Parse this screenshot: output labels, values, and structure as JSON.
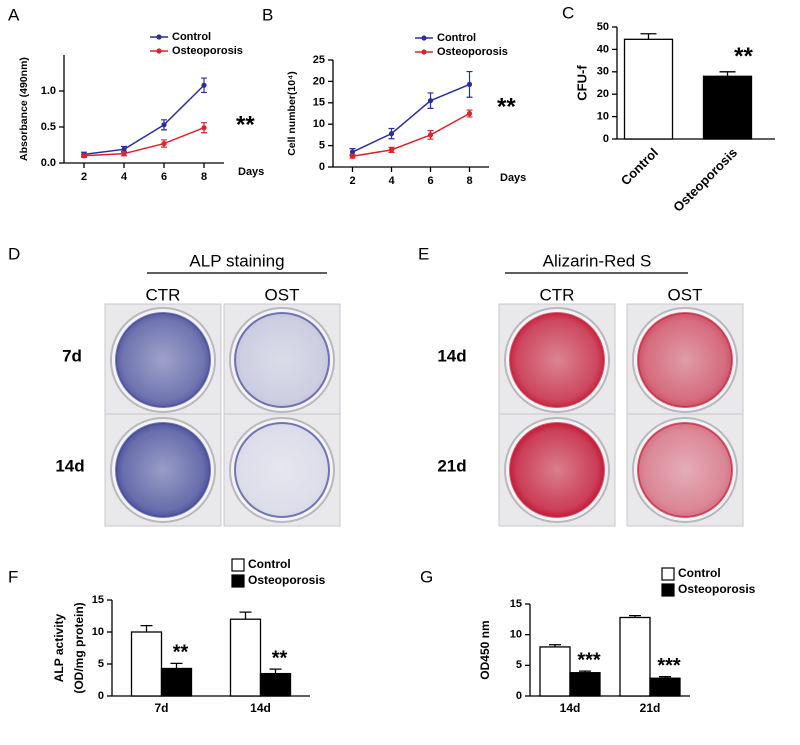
{
  "chart_data": [
    {
      "panel": "A",
      "type": "line",
      "ylabel": "Absorbance (490nm)",
      "xlabel": "Days",
      "annotation": "**",
      "x": [
        2,
        4,
        6,
        8
      ],
      "xlim": [
        1,
        9
      ],
      "xticks": [
        2,
        4,
        6,
        8
      ],
      "ylim": [
        0,
        1.5
      ],
      "yticks": [
        {
          "value": 0,
          "label": "0.0"
        },
        {
          "value": 0.5,
          "label": "0.5"
        },
        {
          "value": 1.0,
          "label": "1.0"
        }
      ],
      "series": [
        {
          "name": "Control",
          "color": "#2b2f9e",
          "values": [
            0.12,
            0.19,
            0.53,
            1.08
          ],
          "errors": [
            0.03,
            0.04,
            0.07,
            0.1
          ]
        },
        {
          "name": "Osteoporosis",
          "color": "#d9262b",
          "values": [
            0.1,
            0.13,
            0.27,
            0.49
          ],
          "errors": [
            0.02,
            0.03,
            0.05,
            0.07
          ]
        }
      ]
    },
    {
      "panel": "B",
      "type": "line",
      "ylabel": "Cell number(10⁴)",
      "xlabel": "Days",
      "annotation": "**",
      "x": [
        2,
        4,
        6,
        8
      ],
      "xlim": [
        1,
        9
      ],
      "xticks": [
        2,
        4,
        6,
        8
      ],
      "ylim": [
        0,
        25
      ],
      "yticks": [
        0,
        5,
        10,
        15,
        20,
        25
      ],
      "series": [
        {
          "name": "Control",
          "color": "#2b2f9e",
          "values": [
            3.5,
            7.8,
            15.5,
            19.3
          ],
          "errors": [
            0.8,
            1.2,
            1.8,
            3
          ]
        },
        {
          "name": "Osteoporosis",
          "color": "#d9262b",
          "values": [
            2.5,
            4,
            7.5,
            12.5
          ],
          "errors": [
            0.4,
            0.6,
            1,
            0.8
          ]
        }
      ]
    },
    {
      "panel": "C",
      "type": "bar",
      "ylabel": "CFU-f",
      "annotation": "**",
      "categories": [
        "Control",
        "Osteoporosis"
      ],
      "values": [
        44.5,
        28
      ],
      "errors": [
        2.5,
        2
      ],
      "colors": [
        "#ffffff",
        "#000000"
      ],
      "ylim": [
        0,
        50
      ],
      "yticks": [
        0,
        10,
        20,
        30,
        40,
        50
      ]
    },
    {
      "panel": "F",
      "type": "grouped_bar",
      "ylabel": [
        "ALP activity",
        "(OD/mg protein)"
      ],
      "annotations": [
        "**",
        "**"
      ],
      "categories": [
        "7d",
        "14d"
      ],
      "ylim": [
        0,
        15
      ],
      "yticks": [
        0,
        5,
        10,
        15
      ],
      "series": [
        {
          "name": "Control",
          "color": "#ffffff",
          "values": [
            10,
            12
          ],
          "errors": [
            1,
            1.1
          ]
        },
        {
          "name": "Osteoporosis",
          "color": "#000000",
          "values": [
            4.3,
            3.5
          ],
          "errors": [
            0.8,
            0.7
          ]
        }
      ]
    },
    {
      "panel": "G",
      "type": "grouped_bar",
      "ylabel": [
        "OD450 nm"
      ],
      "annotations": [
        "***",
        "***"
      ],
      "categories": [
        "14d",
        "21d"
      ],
      "ylim": [
        0,
        15
      ],
      "yticks": [
        0,
        5,
        10,
        15
      ],
      "series": [
        {
          "name": "Control",
          "color": "#ffffff",
          "values": [
            8,
            12.8
          ],
          "errors": [
            0.35,
            0.3
          ]
        },
        {
          "name": "Osteoporosis",
          "color": "#000000",
          "values": [
            3.8,
            2.9
          ],
          "errors": [
            0.25,
            0.25
          ]
        }
      ]
    }
  ],
  "plates": [
    {
      "panel": "D",
      "title": "ALP staining",
      "columns": [
        "CTR",
        "OST"
      ],
      "rows": [
        "7d",
        "14d"
      ],
      "stain": "#3e4596"
    },
    {
      "panel": "E",
      "title": "Alizarin-Red S",
      "columns": [
        "CTR",
        "OST"
      ],
      "rows": [
        "14d",
        "21d"
      ],
      "stain": "#c41e3a"
    }
  ]
}
